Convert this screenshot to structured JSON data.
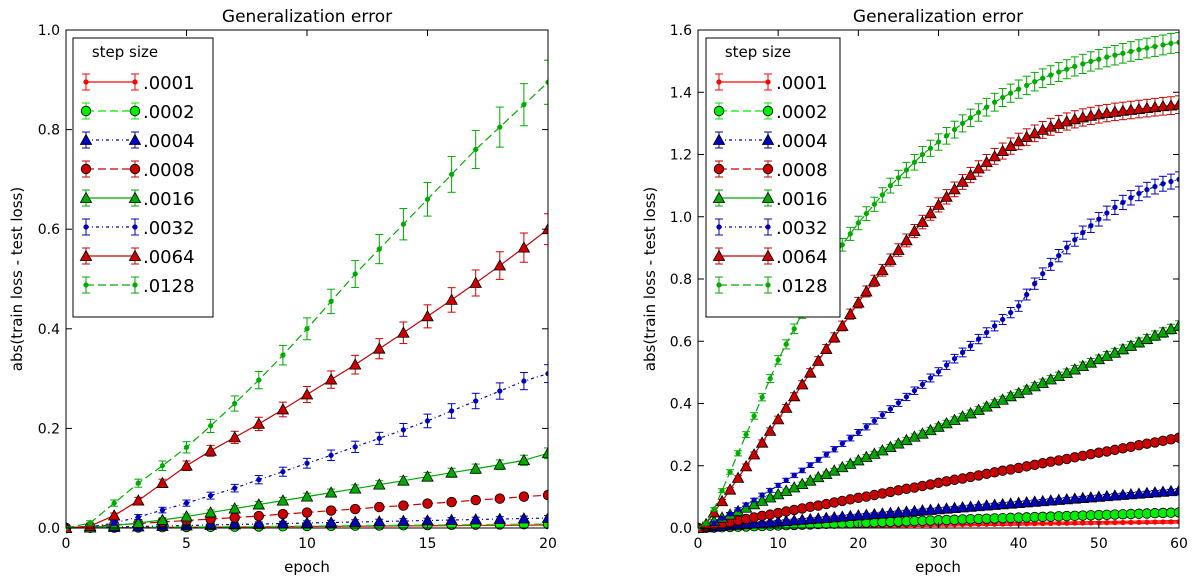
{
  "chart_data": [
    {
      "type": "line",
      "title": "Generalization error",
      "xlabel": "epoch",
      "ylabel": "abs(train loss - test loss)",
      "xlim": [
        0,
        20
      ],
      "ylim": [
        0,
        1.0
      ],
      "xticks": [
        0,
        5,
        10,
        15,
        20
      ],
      "xtick_labels": [
        "0",
        "5",
        "10",
        "15",
        "20"
      ],
      "yticks": [
        0,
        0.2,
        0.4,
        0.6,
        0.8,
        1.0
      ],
      "ytick_labels": [
        "0.0",
        "0.2",
        "0.4",
        "0.6",
        "0.8",
        "1.0"
      ],
      "legend": {
        "title": "step size",
        "placement": "top-left"
      },
      "x": [
        0,
        1,
        2,
        3,
        4,
        5,
        6,
        7,
        8,
        9,
        10,
        11,
        12,
        13,
        14,
        15,
        16,
        17,
        18,
        19,
        20
      ],
      "series": [
        {
          "name": ".0001",
          "color": "#ff0000",
          "linestyle": "solid",
          "marker": "dot",
          "values": [
            0,
            0.0003,
            0.0006,
            0.0009,
            0.0012,
            0.0015,
            0.0018,
            0.0021,
            0.0024,
            0.0027,
            0.003,
            0.0033,
            0.0036,
            0.0039,
            0.0042,
            0.0045,
            0.0048,
            0.0051,
            0.0054,
            0.0057,
            0.006
          ]
        },
        {
          "name": ".0002",
          "color": "#00ee00",
          "linestyle": "dashed",
          "marker": "circle",
          "values": [
            0,
            0.0004,
            0.0008,
            0.0012,
            0.0016,
            0.002,
            0.0024,
            0.0028,
            0.0032,
            0.0036,
            0.004,
            0.0044,
            0.0048,
            0.0052,
            0.0056,
            0.006,
            0.0064,
            0.0068,
            0.0072,
            0.0076,
            0.008
          ]
        },
        {
          "name": ".0004",
          "color": "#0000bb",
          "linestyle": "dashdot",
          "marker": "triangle",
          "values": [
            0,
            0.001,
            0.002,
            0.003,
            0.004,
            0.005,
            0.006,
            0.007,
            0.008,
            0.009,
            0.01,
            0.011,
            0.012,
            0.013,
            0.014,
            0.015,
            0.016,
            0.017,
            0.018,
            0.019,
            0.02
          ]
        },
        {
          "name": ".0008",
          "color": "#cc0000",
          "linestyle": "dashed",
          "marker": "circle",
          "values": [
            0,
            0.003,
            0.006,
            0.009,
            0.012,
            0.015,
            0.018,
            0.021,
            0.024,
            0.028,
            0.031,
            0.035,
            0.038,
            0.042,
            0.045,
            0.049,
            0.052,
            0.056,
            0.059,
            0.063,
            0.066
          ]
        },
        {
          "name": ".0016",
          "color": "#00aa00",
          "linestyle": "solid",
          "marker": "triangle",
          "values": [
            0,
            0.001,
            0.005,
            0.01,
            0.016,
            0.023,
            0.031,
            0.039,
            0.047,
            0.055,
            0.063,
            0.071,
            0.079,
            0.087,
            0.095,
            0.103,
            0.111,
            0.119,
            0.127,
            0.136,
            0.15
          ]
        },
        {
          "name": ".0032",
          "color": "#0000bb",
          "linestyle": "dashdot",
          "marker": "dot",
          "values": [
            0,
            0.002,
            0.01,
            0.022,
            0.036,
            0.05,
            0.065,
            0.08,
            0.097,
            0.113,
            0.13,
            0.146,
            0.163,
            0.18,
            0.197,
            0.215,
            0.235,
            0.255,
            0.275,
            0.295,
            0.31
          ]
        },
        {
          "name": ".0064",
          "color": "#cc0000",
          "linestyle": "solid",
          "marker": "triangle",
          "values": [
            0,
            0.004,
            0.025,
            0.055,
            0.09,
            0.125,
            0.155,
            0.182,
            0.209,
            0.238,
            0.268,
            0.298,
            0.328,
            0.36,
            0.392,
            0.425,
            0.458,
            0.492,
            0.527,
            0.563,
            0.6
          ]
        },
        {
          "name": ".0128",
          "color": "#00aa00",
          "linestyle": "dashed",
          "marker": "dot",
          "values": [
            0,
            0.01,
            0.05,
            0.09,
            0.125,
            0.162,
            0.205,
            0.25,
            0.297,
            0.347,
            0.4,
            0.455,
            0.51,
            0.56,
            0.61,
            0.66,
            0.71,
            0.76,
            0.805,
            0.85,
            0.895
          ]
        }
      ]
    },
    {
      "type": "line",
      "title": "Generalization error",
      "xlabel": "epoch",
      "ylabel": "abs(train loss - test loss)",
      "xlim": [
        0,
        60
      ],
      "ylim": [
        0,
        1.6
      ],
      "xticks": [
        0,
        10,
        20,
        30,
        40,
        50,
        60
      ],
      "xtick_labels": [
        "0",
        "10",
        "20",
        "30",
        "40",
        "50",
        "60"
      ],
      "yticks": [
        0,
        0.2,
        0.4,
        0.6,
        0.8,
        1.0,
        1.2,
        1.4,
        1.6
      ],
      "ytick_labels": [
        "0.0",
        "0.2",
        "0.4",
        "0.6",
        "0.8",
        "1.0",
        "1.2",
        "1.4",
        "1.6"
      ],
      "legend": {
        "title": "step size",
        "placement": "top-left"
      },
      "x": [
        0,
        1,
        2,
        3,
        4,
        5,
        6,
        7,
        8,
        9,
        10,
        11,
        12,
        13,
        14,
        15,
        16,
        17,
        18,
        19,
        20,
        21,
        22,
        23,
        24,
        25,
        26,
        27,
        28,
        29,
        30,
        31,
        32,
        33,
        34,
        35,
        36,
        37,
        38,
        39,
        40,
        41,
        42,
        43,
        44,
        45,
        46,
        47,
        48,
        49,
        50,
        51,
        52,
        53,
        54,
        55,
        56,
        57,
        58,
        59,
        60
      ],
      "series": [
        {
          "name": ".0001",
          "color": "#ff0000",
          "linestyle": "solid",
          "marker": "dot",
          "values": [
            0,
            0.0003,
            0.0006,
            0.001,
            0.0013,
            0.0016,
            0.002,
            0.0023,
            0.0026,
            0.003,
            0.0033,
            0.0036,
            0.004,
            0.0043,
            0.0046,
            0.005,
            0.0053,
            0.0056,
            0.006,
            0.0063,
            0.0066,
            0.007,
            0.0073,
            0.0076,
            0.008,
            0.0083,
            0.0086,
            0.009,
            0.0093,
            0.0096,
            0.01,
            0.0103,
            0.0106,
            0.011,
            0.0113,
            0.0116,
            0.012,
            0.0123,
            0.0126,
            0.013,
            0.0133,
            0.0136,
            0.014,
            0.0143,
            0.0146,
            0.015,
            0.0153,
            0.0156,
            0.016,
            0.0163,
            0.0166,
            0.017,
            0.0173,
            0.0176,
            0.018,
            0.0183,
            0.0186,
            0.019,
            0.0193,
            0.0196,
            0.02
          ]
        },
        {
          "name": ".0002",
          "color": "#00ee00",
          "linestyle": "dashed",
          "marker": "circle",
          "values": [
            0,
            0.0008,
            0.0016,
            0.0025,
            0.0033,
            0.0041,
            0.005,
            0.0058,
            0.0066,
            0.0075,
            0.0083,
            0.0091,
            0.01,
            0.0108,
            0.0116,
            0.0125,
            0.0133,
            0.0141,
            0.015,
            0.0158,
            0.0166,
            0.0175,
            0.0183,
            0.0191,
            0.02,
            0.0208,
            0.0216,
            0.0225,
            0.0233,
            0.0241,
            0.025,
            0.0258,
            0.0266,
            0.0275,
            0.0283,
            0.0291,
            0.03,
            0.0308,
            0.0316,
            0.0325,
            0.0333,
            0.0341,
            0.035,
            0.0358,
            0.0366,
            0.0375,
            0.0383,
            0.0391,
            0.04,
            0.0408,
            0.0416,
            0.0425,
            0.0433,
            0.0441,
            0.045,
            0.0458,
            0.0466,
            0.0475,
            0.0483,
            0.0491,
            0.05
          ]
        },
        {
          "name": ".0004",
          "color": "#0000bb",
          "linestyle": "dashdot",
          "marker": "triangle",
          "values": [
            0,
            0.002,
            0.004,
            0.006,
            0.008,
            0.01,
            0.012,
            0.014,
            0.016,
            0.018,
            0.02,
            0.022,
            0.024,
            0.026,
            0.028,
            0.03,
            0.032,
            0.034,
            0.036,
            0.038,
            0.04,
            0.042,
            0.044,
            0.046,
            0.048,
            0.05,
            0.052,
            0.054,
            0.056,
            0.058,
            0.06,
            0.062,
            0.064,
            0.066,
            0.068,
            0.07,
            0.072,
            0.074,
            0.076,
            0.078,
            0.08,
            0.082,
            0.084,
            0.086,
            0.088,
            0.09,
            0.092,
            0.094,
            0.096,
            0.098,
            0.1,
            0.102,
            0.104,
            0.106,
            0.108,
            0.11,
            0.112,
            0.114,
            0.116,
            0.118,
            0.12
          ]
        },
        {
          "name": ".0008",
          "color": "#cc0000",
          "linestyle": "dashed",
          "marker": "circle",
          "values": [
            0,
            0.005,
            0.01,
            0.014,
            0.019,
            0.024,
            0.029,
            0.034,
            0.039,
            0.043,
            0.048,
            0.053,
            0.058,
            0.063,
            0.068,
            0.072,
            0.077,
            0.082,
            0.087,
            0.092,
            0.097,
            0.101,
            0.106,
            0.111,
            0.116,
            0.121,
            0.126,
            0.13,
            0.135,
            0.14,
            0.145,
            0.15,
            0.155,
            0.159,
            0.164,
            0.169,
            0.174,
            0.179,
            0.184,
            0.188,
            0.193,
            0.198,
            0.203,
            0.208,
            0.213,
            0.217,
            0.222,
            0.227,
            0.232,
            0.237,
            0.242,
            0.246,
            0.251,
            0.256,
            0.261,
            0.266,
            0.271,
            0.275,
            0.28,
            0.285,
            0.29
          ]
        },
        {
          "name": ".0016",
          "color": "#00aa00",
          "linestyle": "solid",
          "marker": "triangle",
          "values": [
            0,
            0.011,
            0.022,
            0.033,
            0.043,
            0.054,
            0.065,
            0.076,
            0.087,
            0.098,
            0.108,
            0.119,
            0.13,
            0.141,
            0.152,
            0.163,
            0.173,
            0.184,
            0.195,
            0.206,
            0.217,
            0.228,
            0.238,
            0.249,
            0.26,
            0.271,
            0.282,
            0.293,
            0.303,
            0.314,
            0.325,
            0.336,
            0.347,
            0.358,
            0.368,
            0.379,
            0.39,
            0.401,
            0.412,
            0.423,
            0.433,
            0.444,
            0.455,
            0.466,
            0.477,
            0.488,
            0.498,
            0.509,
            0.52,
            0.531,
            0.542,
            0.553,
            0.563,
            0.574,
            0.585,
            0.596,
            0.607,
            0.618,
            0.628,
            0.639,
            0.65
          ]
        },
        {
          "name": ".0032",
          "color": "#0000bb",
          "linestyle": "dashdot",
          "marker": "dot",
          "values": [
            0,
            0.007,
            0.016,
            0.031,
            0.045,
            0.06,
            0.075,
            0.09,
            0.106,
            0.121,
            0.137,
            0.153,
            0.169,
            0.185,
            0.202,
            0.219,
            0.236,
            0.253,
            0.271,
            0.289,
            0.307,
            0.325,
            0.344,
            0.363,
            0.382,
            0.402,
            0.421,
            0.441,
            0.461,
            0.482,
            0.502,
            0.523,
            0.544,
            0.564,
            0.585,
            0.607,
            0.628,
            0.649,
            0.67,
            0.692,
            0.713,
            0.75,
            0.785,
            0.817,
            0.847,
            0.875,
            0.901,
            0.926,
            0.949,
            0.971,
            0.992,
            1.012,
            1.03,
            1.046,
            1.061,
            1.075,
            1.087,
            1.097,
            1.106,
            1.113,
            1.12
          ]
        },
        {
          "name": ".0064",
          "color": "#cc0000",
          "linestyle": "solid",
          "marker": "triangle",
          "values": [
            0,
            0.012,
            0.05,
            0.086,
            0.123,
            0.161,
            0.198,
            0.236,
            0.274,
            0.312,
            0.349,
            0.386,
            0.423,
            0.461,
            0.499,
            0.537,
            0.575,
            0.612,
            0.649,
            0.687,
            0.724,
            0.76,
            0.794,
            0.828,
            0.861,
            0.893,
            0.924,
            0.954,
            0.983,
            1.011,
            1.038,
            1.064,
            1.088,
            1.112,
            1.134,
            1.155,
            1.175,
            1.194,
            1.211,
            1.227,
            1.242,
            1.256,
            1.268,
            1.279,
            1.289,
            1.298,
            1.306,
            1.313,
            1.319,
            1.324,
            1.329,
            1.333,
            1.337,
            1.34,
            1.343,
            1.346,
            1.349,
            1.352,
            1.355,
            1.357,
            1.36
          ]
        },
        {
          "name": ".0128",
          "color": "#00aa00",
          "linestyle": "dashed",
          "marker": "dot",
          "values": [
            0,
            0.015,
            0.06,
            0.12,
            0.18,
            0.24,
            0.3,
            0.36,
            0.42,
            0.48,
            0.54,
            0.59,
            0.64,
            0.69,
            0.74,
            0.785,
            0.83,
            0.87,
            0.91,
            0.945,
            0.98,
            1.01,
            1.04,
            1.07,
            1.1,
            1.125,
            1.15,
            1.175,
            1.2,
            1.22,
            1.24,
            1.26,
            1.28,
            1.3,
            1.318,
            1.335,
            1.352,
            1.368,
            1.383,
            1.397,
            1.41,
            1.422,
            1.434,
            1.445,
            1.455,
            1.465,
            1.474,
            1.483,
            1.491,
            1.499,
            1.506,
            1.513,
            1.519,
            1.525,
            1.531,
            1.537,
            1.542,
            1.547,
            1.552,
            1.557,
            1.56
          ]
        }
      ]
    }
  ]
}
